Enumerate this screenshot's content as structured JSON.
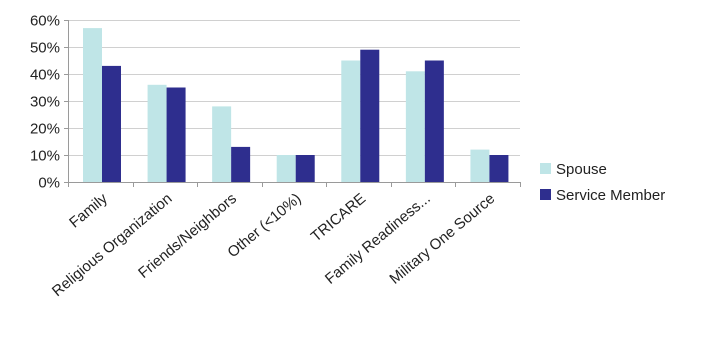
{
  "chart_data": {
    "type": "bar",
    "categories": [
      "Family",
      "Religious Organization",
      "Friends/Neighbors",
      "Other (<10%)",
      "TRICARE",
      "Family Readiness...",
      "Military One Source"
    ],
    "series": [
      {
        "name": "Spouse",
        "color": "#bfe5e7",
        "values": [
          57,
          36,
          28,
          10,
          45,
          41,
          12
        ]
      },
      {
        "name": "Service Member",
        "color": "#2e2e8e",
        "values": [
          43,
          35,
          13,
          10,
          49,
          45,
          10
        ]
      }
    ],
    "ylim": [
      0,
      60
    ],
    "yticks": [
      0,
      10,
      20,
      30,
      40,
      50,
      60
    ],
    "ytick_labels": [
      "0%",
      "10%",
      "20%",
      "30%",
      "40%",
      "50%",
      "60%"
    ],
    "grid": true,
    "legend_position": "right"
  }
}
